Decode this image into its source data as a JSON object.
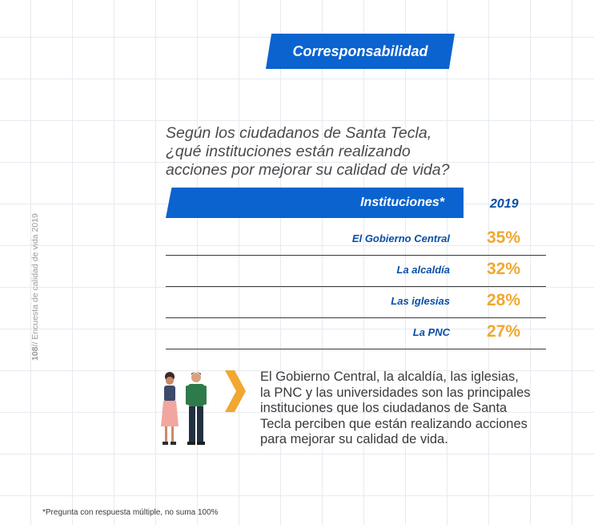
{
  "section_title": "Corresponsabilidad",
  "side_label": {
    "page_number": "108",
    "text": "// Encuesta de calidad de vida 2019"
  },
  "question_lines": [
    "Según los ciudadanos de Santa Tecla,",
    "¿qué instituciones están realizando",
    "acciones por mejorar su calidad de vida?"
  ],
  "chart_data": {
    "type": "table",
    "header": "Instituciones*",
    "column": "2019",
    "rows": [
      {
        "label": "El Gobierno Central",
        "value": 35,
        "display": "35%"
      },
      {
        "label": "La alcaldía",
        "value": 32,
        "display": "32%"
      },
      {
        "label": "Las iglesias",
        "value": 28,
        "display": "28%"
      },
      {
        "label": "La PNC",
        "value": 27,
        "display": "27%"
      }
    ]
  },
  "summary_lines": [
    "El Gobierno Central, la alcaldía, las iglesias,",
    "la PNC y las universidades son las principales",
    "instituciones que los ciudadanos de Santa",
    "Tecla perciben que están realizando acciones",
    "para mejorar su calidad de vida."
  ],
  "footnote": "*Pregunta con respuesta múltiple, no suma 100%",
  "colors": {
    "brand_blue": "#0a63cf",
    "value_orange": "#f0a830",
    "chevron": "#f0a830"
  },
  "icons": [
    "people-illustration-icon",
    "chevron-right-icon"
  ]
}
